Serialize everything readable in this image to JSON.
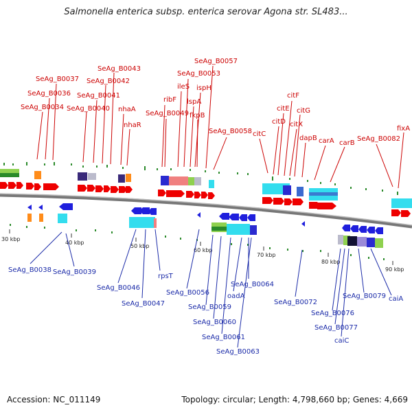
{
  "title": "Salmonella enterica subsp. enterica serovar Agona str. SL483...",
  "footer": {
    "accession": "Accession: NC_011149",
    "summary": "Topology: circular; Length: 4,798,660 bp; Genes: 4,669"
  },
  "ticks": [
    "30 kbp",
    "40 kbp",
    "50 kbp",
    "60 kbp",
    "70 kbp",
    "80 kbp",
    "90 kbp"
  ],
  "top_labels": [
    "SeAg_B0034",
    "SeAg_B0036",
    "SeAg_B0037",
    "SeAg_B0040",
    "SeAg_B0041",
    "SeAg_B0042",
    "SeAg_B0043",
    "nhaA",
    "nhaR",
    "ribF",
    "SeAg_B0049",
    "ileS",
    "SeAg_B0053",
    "lspA",
    "ispH",
    "fkpB",
    "SeAg_B0057",
    "SeAg_B0058",
    "citC",
    "citD",
    "citE",
    "citF",
    "citX",
    "citG",
    "dapB",
    "carA",
    "carB",
    "SeAg_B0082",
    "fixA"
  ],
  "bottom_labels": [
    "SeAg_B0038",
    "SeAg_B0039",
    "SeAg_B0046",
    "SeAg_B0047",
    "rpsT",
    "SeAg_B0056",
    "SeAg_B0059",
    "SeAg_B0060",
    "SeAg_B0061",
    "oadA",
    "SeAg_B0064",
    "SeAg_B0063",
    "SeAg_B0072",
    "SeAg_B0076",
    "SeAg_B0077",
    "caiC",
    "SeAg_B0079",
    "caiA"
  ],
  "colors": {
    "forward": "#ee0000",
    "reverse": "#1f1fdd",
    "top_label": "#cc0000",
    "bottom_label": "#1a2aa8",
    "cyan": "#33ddee",
    "backbone": "#888888"
  }
}
